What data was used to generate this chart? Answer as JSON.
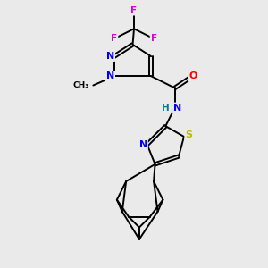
{
  "bg_color": "#eaeaea",
  "bond_color": "#000000",
  "bond_width": 1.4,
  "atom_colors": {
    "N": "#0000ff",
    "O": "#ff0000",
    "S": "#bbbb00",
    "F": "#dd00dd",
    "C": "#000000",
    "H": "#008080"
  },
  "figsize": [
    3.0,
    3.0
  ],
  "dpi": 100
}
